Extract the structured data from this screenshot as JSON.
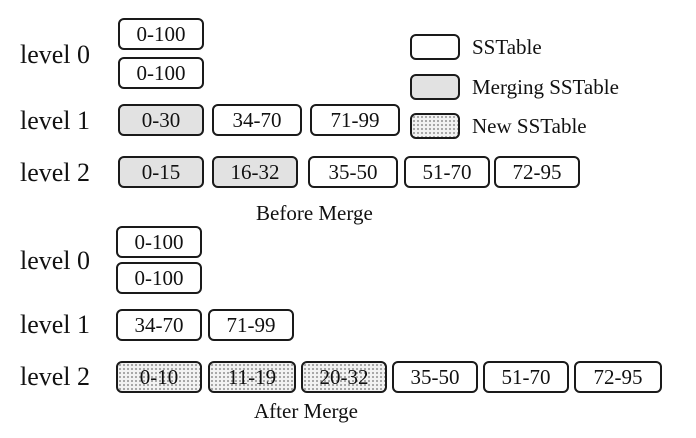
{
  "legend": {
    "sstable": "SSTable",
    "merging": "Merging SSTable",
    "new": "New SSTable"
  },
  "before": {
    "caption": "Before Merge",
    "level0": {
      "label": "level 0",
      "tables": [
        "0-100",
        "0-100"
      ]
    },
    "level1": {
      "label": "level 1",
      "tables": [
        "0-30",
        "34-70",
        "71-99"
      ]
    },
    "level2": {
      "label": "level 2",
      "tables": [
        "0-15",
        "16-32",
        "35-50",
        "51-70",
        "72-95"
      ]
    }
  },
  "after": {
    "caption": "After Merge",
    "level0": {
      "label": "level 0",
      "tables": [
        "0-100",
        "0-100"
      ]
    },
    "level1": {
      "label": "level 1",
      "tables": [
        "34-70",
        "71-99"
      ]
    },
    "level2": {
      "label": "level 2",
      "tables": [
        "0-10",
        "11-19",
        "20-32",
        "35-50",
        "51-70",
        "72-95"
      ]
    }
  },
  "colors": {
    "border": "#1a1a1a",
    "merging_fill": "#e2e2e2",
    "new_fill": "#f2f2f2 dotted"
  }
}
